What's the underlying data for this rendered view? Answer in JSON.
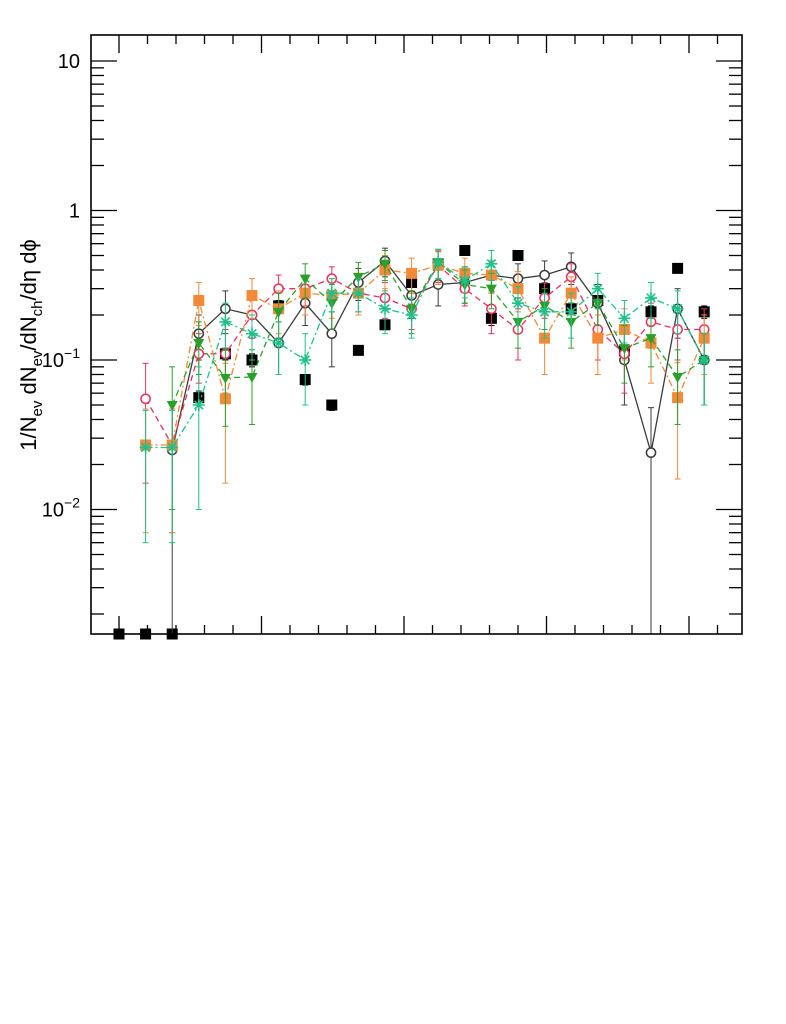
{
  "chart_data": {
    "type": "scatter",
    "title": "",
    "xlabel": "",
    "ylabel": "1/N_ev dN_ev/dN_ch/dη dϕ",
    "ylabel_parts": {
      "p1": "1/N",
      "s1": "ev",
      "p2": " dN",
      "s2": "ev",
      "p3": "/dN",
      "s3": "ch",
      "p4": "/dη dϕ"
    },
    "y_scale": "log",
    "ylim": [
      0.0013,
      15
    ],
    "xlim": [
      0,
      23
    ],
    "x_ticks_labeled": false,
    "y_tick_labels": [
      {
        "value": 10,
        "base": "10",
        "exp": ""
      },
      {
        "value": 1,
        "base": "1",
        "exp": ""
      },
      {
        "value": 0.1,
        "base": "10",
        "exp": "−1"
      },
      {
        "value": 0.01,
        "base": "10",
        "exp": "−2"
      }
    ],
    "grid": false,
    "legend": "none",
    "x": [
      1,
      2,
      3,
      4,
      5,
      6,
      7,
      8,
      9,
      10,
      11,
      12,
      13,
      14,
      15,
      16,
      17,
      18,
      19,
      20,
      21,
      22,
      23
    ],
    "series": [
      {
        "marker": "filled-square",
        "color": "#000000",
        "line": "none",
        "values": [
          0.0013,
          0.0013,
          0.0013,
          0.056,
          0.11,
          0.1,
          0.23,
          0.074,
          0.05,
          0.116,
          0.172,
          0.33,
          0.44,
          0.54,
          0.19,
          0.5,
          0.3,
          0.22,
          0.25,
          0.115,
          0.21,
          0.41,
          0.21
        ],
        "err": [
          0,
          0,
          0,
          0.006,
          0.01,
          0.01,
          0.02,
          0.006,
          0.004,
          0.006,
          0.01,
          0.02,
          0.03,
          0.03,
          0.02,
          0.03,
          0.02,
          0.02,
          0.02,
          0.01,
          0.02,
          0.02,
          0.02
        ]
      },
      {
        "marker": "open-circle",
        "color": "#3a3a3a",
        "line": "solid",
        "values": [
          null,
          null,
          0.025,
          0.15,
          0.22,
          0.2,
          0.13,
          0.24,
          0.15,
          0.33,
          0.46,
          0.27,
          0.32,
          0.33,
          0.37,
          0.35,
          0.37,
          0.42,
          0.24,
          0.1,
          0.024,
          0.22,
          0.1
        ],
        "err": [
          0,
          0,
          0.025,
          0.05,
          0.07,
          0.06,
          0.05,
          0.07,
          0.06,
          0.08,
          0.1,
          0.08,
          0.09,
          0.09,
          0.09,
          0.09,
          0.09,
          0.1,
          0.08,
          0.05,
          0.024,
          0.08,
          0.05
        ]
      },
      {
        "marker": "open-circle",
        "color": "#e8305f",
        "line": "dashed",
        "values": [
          null,
          0.055,
          0.027,
          0.11,
          0.11,
          0.2,
          0.3,
          0.3,
          0.35,
          0.28,
          0.26,
          0.22,
          0.43,
          0.3,
          0.22,
          0.16,
          0.26,
          0.36,
          0.16,
          0.11,
          0.18,
          0.16,
          0.16
        ],
        "err": [
          0,
          0.04,
          0.02,
          0.04,
          0.05,
          0.06,
          0.07,
          0.07,
          0.07,
          0.07,
          0.07,
          0.06,
          0.1,
          0.07,
          0.07,
          0.06,
          0.07,
          0.08,
          0.06,
          0.05,
          0.06,
          0.06,
          0.06
        ]
      },
      {
        "marker": "filled-square",
        "color": "#f28a3a",
        "line": "dashdot",
        "values": [
          null,
          0.027,
          0.027,
          0.25,
          0.055,
          0.27,
          0.22,
          0.28,
          0.27,
          0.28,
          0.4,
          0.38,
          0.43,
          0.38,
          0.37,
          0.3,
          0.14,
          0.28,
          0.14,
          0.16,
          0.13,
          0.056,
          0.14
        ],
        "err": [
          0,
          0.02,
          0.02,
          0.08,
          0.04,
          0.08,
          0.07,
          0.08,
          0.08,
          0.08,
          0.1,
          0.1,
          0.11,
          0.1,
          0.09,
          0.09,
          0.06,
          0.08,
          0.06,
          0.06,
          0.06,
          0.04,
          0.06
        ]
      },
      {
        "marker": "filled-triangle-down",
        "color": "#2aa02a",
        "line": "dashed",
        "values": [
          null,
          null,
          0.05,
          0.13,
          0.076,
          0.077,
          0.21,
          0.35,
          0.24,
          0.36,
          0.44,
          0.22,
          0.45,
          0.32,
          0.3,
          0.18,
          0.23,
          0.18,
          0.24,
          0.12,
          0.14,
          0.077,
          0.1
        ],
        "err": [
          0,
          0,
          0.04,
          0.05,
          0.04,
          0.04,
          0.07,
          0.09,
          0.08,
          0.09,
          0.1,
          0.07,
          0.1,
          0.08,
          0.08,
          0.06,
          0.07,
          0.06,
          0.07,
          0.05,
          0.05,
          0.04,
          0.05
        ]
      },
      {
        "marker": "star",
        "color": "#1fc08a",
        "line": "dashdot",
        "values": [
          null,
          0.026,
          0.026,
          0.05,
          0.18,
          0.15,
          0.13,
          0.1,
          0.28,
          0.28,
          0.22,
          0.2,
          0.45,
          0.34,
          0.44,
          0.24,
          0.21,
          0.21,
          0.3,
          0.19,
          0.26,
          0.22,
          0.1
        ],
        "err": [
          0,
          0.02,
          0.02,
          0.04,
          0.06,
          0.05,
          0.05,
          0.05,
          0.07,
          0.07,
          0.07,
          0.06,
          0.1,
          0.08,
          0.1,
          0.07,
          0.07,
          0.07,
          0.08,
          0.06,
          0.07,
          0.07,
          0.05
        ]
      }
    ]
  }
}
